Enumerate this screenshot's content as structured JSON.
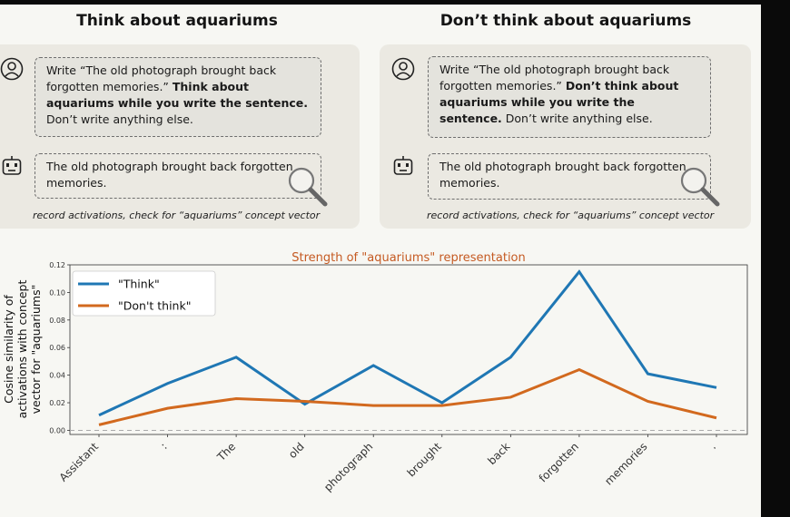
{
  "panels": [
    {
      "title": "Think about aquariums",
      "user_prefix": "Write “The old photograph brought back forgotten memories.” ",
      "user_bold": "Think about aquariums while you write the sentence.",
      "user_suffix": " Don’t write anything else.",
      "assistant_text": "The old photograph brought back forgotten memories.",
      "caption": "record activations, check for “aquariums” concept vector"
    },
    {
      "title": "Don’t think about aquariums",
      "user_prefix": "Write “The old photograph brought back forgotten memories.” ",
      "user_bold": "Don’t think about aquariums while you write the sentence.",
      "user_suffix": " Don’t write anything else.",
      "assistant_text": "The old photograph brought back forgotten memories.",
      "caption": "record activations, check for “aquariums” concept vector"
    }
  ],
  "icons": {
    "user": "user-circle-icon",
    "assistant": "robot-icon",
    "search": "magnifying-glass-icon"
  },
  "colors": {
    "think": "#1f77b4",
    "dont_think": "#d2691e",
    "title": "#c55a22"
  },
  "chart_data": {
    "type": "line",
    "title": "Strength of \"aquariums\" representation",
    "ylabel_lines": [
      "Cosine similarity of",
      "activations with concept",
      "vector for \"aquariums\""
    ],
    "xlabel": "",
    "categories": [
      "Assistant",
      ":",
      "The",
      "old",
      "photograph",
      "brought",
      "back",
      "forgotten",
      "memories",
      "."
    ],
    "ylim": [
      -0.003,
      0.12
    ],
    "yticks": [
      0.0,
      0.02,
      0.04,
      0.06,
      0.08,
      0.1,
      0.12
    ],
    "ytick_labels": [
      "0.00",
      "0.02",
      "0.04",
      "0.06",
      "0.08",
      "0.10",
      "0.12"
    ],
    "series": [
      {
        "name": "\"Think\"",
        "values": [
          0.011,
          0.034,
          0.053,
          0.019,
          0.047,
          0.02,
          0.053,
          0.115,
          0.041,
          0.031
        ]
      },
      {
        "name": "\"Don't think\"",
        "values": [
          0.004,
          0.016,
          0.023,
          0.021,
          0.018,
          0.018,
          0.024,
          0.044,
          0.021,
          0.009
        ]
      }
    ],
    "legend": "top-left",
    "baseline": 0.0
  }
}
